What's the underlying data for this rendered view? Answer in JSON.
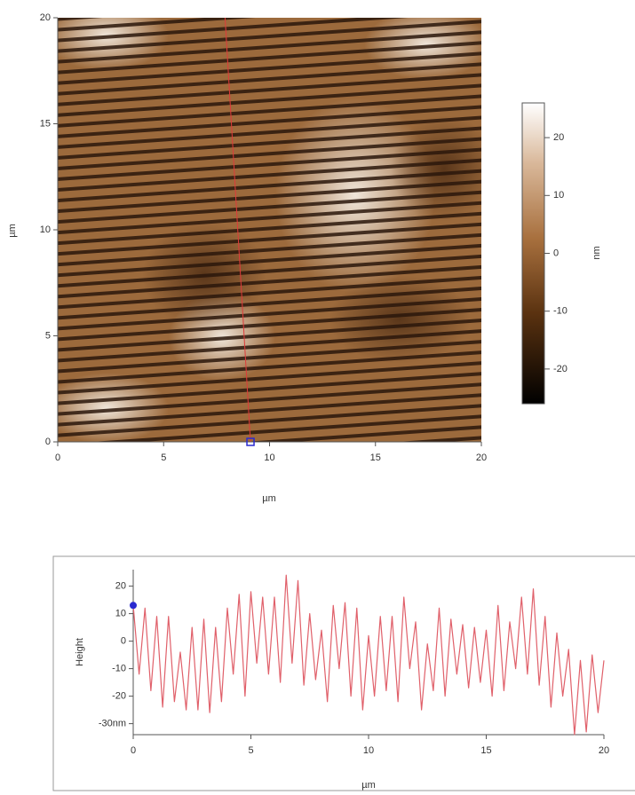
{
  "chart_data": [
    {
      "type": "image",
      "xlim": [
        0,
        20
      ],
      "ylim": [
        0,
        20
      ],
      "xticks": [
        0,
        5,
        10,
        15,
        20
      ],
      "yticks": [
        0,
        5,
        10,
        15,
        20
      ],
      "xlabel": "µm",
      "ylabel": "µm",
      "colorbar": {
        "clim": [
          -26,
          26
        ],
        "ticks": [
          20,
          10,
          0,
          -10,
          -20
        ],
        "label": "nm"
      },
      "profile_line": {
        "x": [
          7.9,
          9.1
        ],
        "y": [
          20,
          0
        ],
        "color": "#e03a3a",
        "marker_color": "#2a2ad0"
      }
    },
    {
      "type": "line",
      "xlim": [
        0,
        20
      ],
      "ylim": [
        -34,
        26
      ],
      "xticks": [
        0,
        5,
        10,
        15,
        20
      ],
      "yticks": [
        20,
        10,
        0,
        -10,
        -20,
        {
          "value": -30,
          "label": "-30nm"
        }
      ],
      "xlabel": "µm",
      "ylabel": "Height",
      "marker_color": "#2a2ad0",
      "x": [
        0,
        0.25,
        0.5,
        0.75,
        1,
        1.25,
        1.5,
        1.75,
        2,
        2.25,
        2.5,
        2.75,
        3,
        3.25,
        3.5,
        3.75,
        4,
        4.25,
        4.5,
        4.75,
        5,
        5.25,
        5.5,
        5.75,
        6,
        6.25,
        6.5,
        6.75,
        7,
        7.25,
        7.5,
        7.75,
        8,
        8.25,
        8.5,
        8.75,
        9,
        9.25,
        9.5,
        9.75,
        10,
        10.25,
        10.5,
        10.75,
        11,
        11.25,
        11.5,
        11.75,
        12,
        12.25,
        12.5,
        12.75,
        13,
        13.25,
        13.5,
        13.75,
        14,
        14.25,
        14.5,
        14.75,
        15,
        15.25,
        15.5,
        15.75,
        16,
        16.25,
        16.5,
        16.75,
        17,
        17.25,
        17.5,
        17.75,
        18,
        18.25,
        18.5,
        18.75,
        19,
        19.25,
        19.5,
        19.75,
        20
      ],
      "series": [
        {
          "color": "#e0606a",
          "values": [
            13,
            -12,
            12,
            -18,
            9,
            -24,
            9,
            -22,
            -4,
            -25,
            5,
            -25,
            8,
            -26,
            5,
            -22,
            12,
            -12,
            17,
            -20,
            18,
            -8,
            16,
            -12,
            16,
            -15,
            24,
            -8,
            22,
            -16,
            10,
            -14,
            4,
            -22,
            13,
            -10,
            14,
            -20,
            12,
            -25,
            2,
            -20,
            9,
            -18,
            9,
            -22,
            16,
            -10,
            7,
            -25,
            -1,
            -18,
            12,
            -20,
            8,
            -12,
            6,
            -17,
            5,
            -15,
            4,
            -20,
            13,
            -18,
            7,
            -10,
            16,
            -12,
            19,
            -16,
            9,
            -24,
            3,
            -20,
            -3,
            -34,
            -7,
            -33,
            -5,
            -26,
            -7
          ]
        }
      ]
    }
  ]
}
